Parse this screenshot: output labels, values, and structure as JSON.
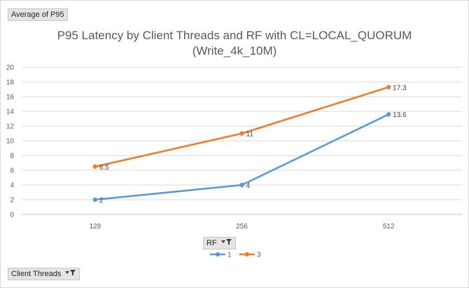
{
  "pivot": {
    "values_field": "Average of P95",
    "legend_field": "RF",
    "axis_field": "Client Threads"
  },
  "chart_data": {
    "type": "line",
    "title": "P95 Latency by Client Threads and RF with CL=LOCAL_QUORUM",
    "subtitle": "(Write_4k_10M)",
    "categories": [
      "128",
      "256",
      "512"
    ],
    "ylim": [
      0,
      20
    ],
    "ytick_step": 2,
    "grid": true,
    "legend_position": "bottom",
    "series": [
      {
        "name": "1",
        "values": [
          2,
          4,
          13.6
        ],
        "labels": [
          "2",
          "4",
          "13.6"
        ],
        "color": "#5b9bd5"
      },
      {
        "name": "3",
        "values": [
          6.5,
          11,
          17.3
        ],
        "labels": [
          "6.5",
          "11",
          "17.3"
        ],
        "color": "#ed7d31"
      }
    ]
  }
}
